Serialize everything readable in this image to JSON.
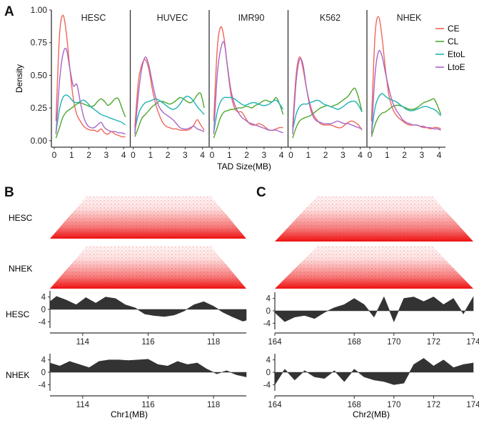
{
  "panels": {
    "a": "A",
    "b": "B",
    "c": "C"
  },
  "colors": {
    "CE": "#f0665a",
    "CL": "#4ba82d",
    "EtoL": "#1fb2b2",
    "LtoE": "#a866c7",
    "track": "#333333",
    "hic": "#ee1111"
  },
  "chart_data": [
    {
      "id": "density",
      "type": "line",
      "title": "",
      "xlabel": "TAD Size(MB)",
      "ylabel": "Density",
      "xlim": [
        0,
        4.2
      ],
      "ylim": [
        -0.05,
        1.0
      ],
      "xticks": [
        0,
        1,
        2,
        3,
        4
      ],
      "yticks": [
        "0.00",
        "0.25",
        "0.50",
        "0.75",
        "1.00"
      ],
      "legend": {
        "position": "right",
        "entries": [
          "CE",
          "CL",
          "EtoL",
          "LtoE"
        ]
      },
      "x": [
        0.1,
        0.3,
        0.5,
        0.7,
        0.9,
        1.1,
        1.3,
        1.5,
        1.7,
        1.9,
        2.1,
        2.3,
        2.5,
        2.7,
        2.9,
        3.1,
        3.3,
        3.5,
        3.7,
        3.9,
        4.1
      ],
      "facets": [
        {
          "name": "HESC",
          "series": [
            {
              "name": "CE",
              "values": [
                0.15,
                0.8,
                0.96,
                0.82,
                0.55,
                0.32,
                0.2,
                0.15,
                0.11,
                0.09,
                0.08,
                0.08,
                0.07,
                0.09,
                0.06,
                0.05,
                0.07,
                0.05,
                0.04,
                0.03,
                0.03
              ]
            },
            {
              "name": "CL",
              "values": [
                0.02,
                0.1,
                0.18,
                0.22,
                0.24,
                0.26,
                0.28,
                0.29,
                0.28,
                0.27,
                0.26,
                0.27,
                0.3,
                0.32,
                0.3,
                0.27,
                0.29,
                0.32,
                0.32,
                0.25,
                0.18
              ]
            },
            {
              "name": "EtoL",
              "values": [
                0.06,
                0.24,
                0.33,
                0.35,
                0.33,
                0.3,
                0.29,
                0.3,
                0.31,
                0.29,
                0.26,
                0.24,
                0.22,
                0.2,
                0.19,
                0.18,
                0.17,
                0.16,
                0.15,
                0.14,
                0.12
              ]
            },
            {
              "name": "LtoE",
              "values": [
                0.05,
                0.45,
                0.66,
                0.7,
                0.55,
                0.42,
                0.43,
                0.3,
                0.18,
                0.12,
                0.1,
                0.1,
                0.12,
                0.14,
                0.1,
                0.08,
                0.07,
                0.07,
                0.06,
                0.06,
                0.05
              ]
            }
          ]
        },
        {
          "name": "HUVEC",
          "series": [
            {
              "name": "CE",
              "values": [
                0.1,
                0.45,
                0.58,
                0.62,
                0.55,
                0.4,
                0.28,
                0.2,
                0.14,
                0.11,
                0.1,
                0.09,
                0.09,
                0.08,
                0.08,
                0.08,
                0.09,
                0.12,
                0.16,
                0.12,
                0.08
              ]
            },
            {
              "name": "CL",
              "values": [
                0.03,
                0.1,
                0.17,
                0.2,
                0.23,
                0.26,
                0.28,
                0.3,
                0.3,
                0.29,
                0.28,
                0.29,
                0.31,
                0.33,
                0.32,
                0.3,
                0.29,
                0.31,
                0.35,
                0.36,
                0.25
              ]
            },
            {
              "name": "EtoL",
              "values": [
                0.08,
                0.2,
                0.26,
                0.29,
                0.3,
                0.31,
                0.32,
                0.31,
                0.29,
                0.27,
                0.25,
                0.24,
                0.25,
                0.28,
                0.32,
                0.34,
                0.33,
                0.3,
                0.26,
                0.23,
                0.2
              ]
            },
            {
              "name": "LtoE",
              "values": [
                0.05,
                0.35,
                0.55,
                0.64,
                0.58,
                0.45,
                0.33,
                0.26,
                0.22,
                0.2,
                0.18,
                0.16,
                0.13,
                0.1,
                0.09,
                0.09,
                0.1,
                0.11,
                0.09,
                0.08,
                0.07
              ]
            }
          ]
        },
        {
          "name": "IMR90",
          "series": [
            {
              "name": "CE",
              "values": [
                0.15,
                0.7,
                0.87,
                0.78,
                0.55,
                0.35,
                0.25,
                0.22,
                0.22,
                0.18,
                0.14,
                0.12,
                0.12,
                0.13,
                0.12,
                0.1,
                0.08,
                0.08,
                0.09,
                0.1,
                0.1
              ]
            },
            {
              "name": "CL",
              "values": [
                0.02,
                0.1,
                0.18,
                0.22,
                0.23,
                0.24,
                0.24,
                0.25,
                0.25,
                0.26,
                0.26,
                0.25,
                0.27,
                0.28,
                0.3,
                0.31,
                0.3,
                0.3,
                0.33,
                0.28,
                0.2
              ]
            },
            {
              "name": "EtoL",
              "values": [
                0.06,
                0.22,
                0.3,
                0.33,
                0.33,
                0.33,
                0.32,
                0.3,
                0.28,
                0.27,
                0.28,
                0.29,
                0.29,
                0.28,
                0.27,
                0.27,
                0.28,
                0.3,
                0.31,
                0.28,
                0.24
              ]
            },
            {
              "name": "LtoE",
              "values": [
                0.05,
                0.5,
                0.7,
                0.75,
                0.56,
                0.38,
                0.28,
                0.22,
                0.18,
                0.16,
                0.14,
                0.13,
                0.12,
                0.11,
                0.1,
                0.09,
                0.08,
                0.08,
                0.08,
                0.07,
                0.06
              ]
            }
          ]
        },
        {
          "name": "K562",
          "series": [
            {
              "name": "CE",
              "values": [
                0.1,
                0.5,
                0.64,
                0.55,
                0.4,
                0.28,
                0.2,
                0.16,
                0.13,
                0.12,
                0.12,
                0.12,
                0.11,
                0.1,
                0.1,
                0.12,
                0.14,
                0.15,
                0.14,
                0.12,
                0.08
              ]
            },
            {
              "name": "CL",
              "values": [
                0.02,
                0.1,
                0.15,
                0.17,
                0.18,
                0.19,
                0.21,
                0.23,
                0.25,
                0.26,
                0.27,
                0.26,
                0.27,
                0.28,
                0.3,
                0.32,
                0.34,
                0.38,
                0.4,
                0.33,
                0.22
              ]
            },
            {
              "name": "EtoL",
              "values": [
                0.08,
                0.2,
                0.26,
                0.28,
                0.28,
                0.29,
                0.3,
                0.31,
                0.3,
                0.28,
                0.27,
                0.26,
                0.25,
                0.24,
                0.25,
                0.27,
                0.29,
                0.3,
                0.3,
                0.27,
                0.22
              ]
            },
            {
              "name": "LtoE",
              "values": [
                0.05,
                0.45,
                0.62,
                0.58,
                0.4,
                0.26,
                0.18,
                0.15,
                0.14,
                0.13,
                0.13,
                0.13,
                0.14,
                0.15,
                0.14,
                0.13,
                0.13,
                0.12,
                0.11,
                0.1,
                0.09
              ]
            }
          ]
        },
        {
          "name": "NHEK",
          "series": [
            {
              "name": "CE",
              "values": [
                0.15,
                0.8,
                0.95,
                0.8,
                0.55,
                0.35,
                0.25,
                0.2,
                0.17,
                0.15,
                0.13,
                0.12,
                0.12,
                0.12,
                0.11,
                0.1,
                0.1,
                0.09,
                0.1,
                0.1,
                0.09
              ]
            },
            {
              "name": "CL",
              "values": [
                0.03,
                0.12,
                0.18,
                0.21,
                0.22,
                0.24,
                0.26,
                0.27,
                0.27,
                0.26,
                0.25,
                0.24,
                0.24,
                0.25,
                0.27,
                0.29,
                0.3,
                0.31,
                0.32,
                0.27,
                0.2
              ]
            },
            {
              "name": "EtoL",
              "values": [
                0.06,
                0.25,
                0.33,
                0.36,
                0.34,
                0.32,
                0.31,
                0.3,
                0.28,
                0.26,
                0.24,
                0.23,
                0.23,
                0.24,
                0.25,
                0.26,
                0.26,
                0.25,
                0.24,
                0.22,
                0.19
              ]
            },
            {
              "name": "LtoE",
              "values": [
                0.05,
                0.5,
                0.68,
                0.65,
                0.52,
                0.4,
                0.3,
                0.24,
                0.2,
                0.16,
                0.14,
                0.13,
                0.12,
                0.12,
                0.11,
                0.11,
                0.1,
                0.1,
                0.09,
                0.09,
                0.08
              ]
            }
          ]
        }
      ]
    },
    {
      "id": "hic-tracks-b",
      "type": "area",
      "xlabel": "Chr1(MB)",
      "xlim": [
        113.0,
        119.0
      ],
      "ylim": [
        -6,
        6
      ],
      "xticks": [
        114,
        116,
        118
      ],
      "yticks": [
        4,
        0,
        -4
      ],
      "heatmaps": [
        "HESC",
        "NHEK"
      ],
      "tracks": [
        {
          "name": "HESC",
          "x": [
            113.0,
            113.2,
            113.5,
            113.8,
            114.1,
            114.4,
            114.7,
            115.0,
            115.3,
            115.6,
            115.9,
            116.2,
            116.5,
            116.8,
            117.1,
            117.4,
            117.7,
            118.0,
            118.3,
            118.6,
            118.9,
            119.0
          ],
          "values": [
            2.5,
            4.2,
            3.0,
            1.5,
            3.8,
            2.0,
            4.0,
            3.5,
            1.5,
            0.5,
            -1.5,
            -2.0,
            -2.3,
            -1.8,
            -0.5,
            1.5,
            2.5,
            1.0,
            -1.0,
            -2.5,
            -3.8,
            -3.5
          ]
        },
        {
          "name": "NHEK",
          "x": [
            113.0,
            113.3,
            113.6,
            113.9,
            114.2,
            114.5,
            114.8,
            115.1,
            115.4,
            115.7,
            116.0,
            116.3,
            116.6,
            116.9,
            117.2,
            117.5,
            117.8,
            118.1,
            118.4,
            118.7,
            119.0
          ],
          "values": [
            3.0,
            2.0,
            3.5,
            2.5,
            1.5,
            3.5,
            4.0,
            4.0,
            3.8,
            4.0,
            4.2,
            2.5,
            2.0,
            3.5,
            2.5,
            3.0,
            1.0,
            -0.5,
            0.5,
            -0.8,
            -1.5
          ]
        }
      ]
    },
    {
      "id": "hic-tracks-c",
      "type": "area",
      "xlabel": "Chr2(MB)",
      "xlim": [
        164.0,
        174.0
      ],
      "ylim": [
        -6,
        6
      ],
      "xticks": [
        164,
        168,
        170,
        172,
        174
      ],
      "yticks": [
        4,
        0,
        -4
      ],
      "heatmaps": [
        "HESC",
        "NHEK"
      ],
      "tracks": [
        {
          "name": "HESC",
          "x": [
            164.0,
            164.5,
            165.0,
            165.5,
            166.0,
            166.5,
            167.0,
            167.5,
            168.0,
            168.5,
            169.0,
            169.5,
            170.0,
            170.5,
            171.0,
            171.5,
            172.0,
            172.5,
            173.0,
            173.5,
            174.0
          ],
          "values": [
            -0.5,
            -3.5,
            -2.0,
            -1.5,
            -2.5,
            -0.5,
            1.0,
            2.0,
            4.0,
            2.0,
            -2.0,
            4.5,
            -3.5,
            4.0,
            4.5,
            3.0,
            4.5,
            2.0,
            4.0,
            -1.0,
            4.5
          ]
        },
        {
          "name": "NHEK",
          "x": [
            164.0,
            164.5,
            165.0,
            165.5,
            166.0,
            166.5,
            167.0,
            167.5,
            168.0,
            168.5,
            169.0,
            169.5,
            170.0,
            170.5,
            171.0,
            171.5,
            172.0,
            172.5,
            173.0,
            173.5,
            174.0
          ],
          "values": [
            -4.0,
            1.0,
            -2.5,
            0.5,
            -1.5,
            -2.0,
            0.5,
            -3.0,
            1.0,
            -1.5,
            -2.5,
            -3.0,
            -4.0,
            -3.5,
            2.5,
            4.5,
            2.0,
            4.0,
            1.5,
            2.5,
            3.0
          ]
        }
      ]
    }
  ]
}
